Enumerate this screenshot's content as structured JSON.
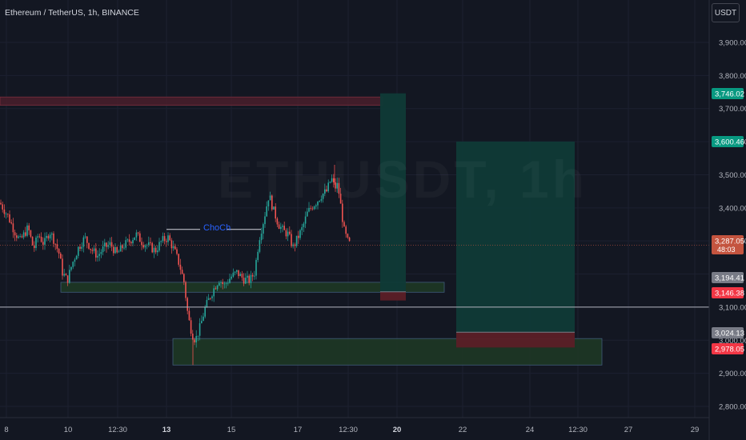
{
  "chart_title": "Ethereum / TetherUS, 1h, BINANCE",
  "unit_button": "USDT",
  "watermark": "ETHUSDT, 1h",
  "annotation": "ChoCh",
  "price_axis": {
    "ticks": [
      "3,900.00",
      "3,800.00",
      "3,700.00",
      "3,600.00",
      "3,500.00",
      "3,400.00",
      "3,300.00",
      "3,100.00",
      "3,000.00",
      "2,900.00",
      "2,800.00"
    ],
    "labels": [
      {
        "text": "3,746.02",
        "color": "#089981"
      },
      {
        "text": "3,600.46",
        "color": "#089981"
      },
      {
        "text": "3,287.05",
        "sub": "48:03",
        "color": "#c4543f"
      },
      {
        "text": "3,194.41",
        "color": "#787b86"
      },
      {
        "text": "3,146.38",
        "color": "#f23645"
      },
      {
        "text": "3,024.13",
        "color": "#787b86"
      },
      {
        "text": "2,978.05",
        "color": "#f23645"
      }
    ]
  },
  "time_axis": [
    "8",
    "10",
    "12:30",
    "13",
    "15",
    "17",
    "12:30",
    "20",
    "22",
    "24",
    "12:30",
    "27",
    "29"
  ],
  "colors": {
    "background": "#131722",
    "up": "#26a69a",
    "down": "#ef5350",
    "target": "#0f3a37",
    "stop": "#5b1f27",
    "demand_zone": "#1f3a25",
    "supply_zone": "#4a1f2c",
    "horizontal_line": "#b2b5be"
  },
  "chart_data": {
    "type": "candlestick",
    "symbol": "ETHUSDT",
    "interval": "1h",
    "exchange": "BINANCE",
    "last_price": 3287.05,
    "countdown": "48:03",
    "ylim": [
      2770,
      3960
    ],
    "horizontal_line": 3100,
    "zones": [
      {
        "type": "supply",
        "top": 3735,
        "bottom": 3710
      },
      {
        "type": "demand",
        "top": 3175,
        "bottom": 3145
      },
      {
        "type": "demand",
        "top": 3005,
        "bottom": 2925
      }
    ],
    "positions": [
      {
        "type": "long",
        "target": 3746.02,
        "entry": 3146.38,
        "stop": 3120
      },
      {
        "type": "long",
        "target": 3600.46,
        "entry": 3024.13,
        "stop": 2978.05
      }
    ],
    "choch_level": 3335,
    "path": [
      [
        0,
        3415
      ],
      [
        10,
        3375
      ],
      [
        18,
        3330
      ],
      [
        25,
        3300
      ],
      [
        35,
        3340
      ],
      [
        42,
        3275
      ],
      [
        48,
        3320
      ],
      [
        55,
        3290
      ],
      [
        62,
        3330
      ],
      [
        68,
        3300
      ],
      [
        74,
        3260
      ],
      [
        78,
        3205
      ],
      [
        84,
        3180
      ],
      [
        90,
        3230
      ],
      [
        98,
        3280
      ],
      [
        106,
        3310
      ],
      [
        114,
        3275
      ],
      [
        122,
        3255
      ],
      [
        130,
        3280
      ],
      [
        138,
        3290
      ],
      [
        146,
        3260
      ],
      [
        154,
        3285
      ],
      [
        162,
        3300
      ],
      [
        170,
        3320
      ],
      [
        178,
        3295
      ],
      [
        186,
        3285
      ],
      [
        194,
        3270
      ],
      [
        202,
        3300
      ],
      [
        210,
        3310
      ],
      [
        218,
        3270
      ],
      [
        224,
        3230
      ],
      [
        230,
        3175
      ],
      [
        235,
        3070
      ],
      [
        240,
        3020
      ],
      [
        244,
        3000
      ],
      [
        250,
        3040
      ],
      [
        256,
        3095
      ],
      [
        262,
        3130
      ],
      [
        268,
        3160
      ],
      [
        274,
        3185
      ],
      [
        280,
        3165
      ],
      [
        288,
        3190
      ],
      [
        296,
        3205
      ],
      [
        304,
        3185
      ],
      [
        312,
        3180
      ],
      [
        318,
        3205
      ],
      [
        324,
        3310
      ],
      [
        330,
        3370
      ],
      [
        336,
        3440
      ],
      [
        342,
        3390
      ],
      [
        348,
        3350
      ],
      [
        354,
        3330
      ],
      [
        360,
        3320
      ],
      [
        366,
        3280
      ],
      [
        372,
        3310
      ],
      [
        378,
        3340
      ],
      [
        384,
        3385
      ],
      [
        390,
        3405
      ],
      [
        396,
        3420
      ],
      [
        402,
        3440
      ],
      [
        408,
        3450
      ],
      [
        414,
        3490
      ],
      [
        418,
        3460
      ],
      [
        422,
        3470
      ],
      [
        426,
        3400
      ],
      [
        430,
        3330
      ],
      [
        434,
        3300
      ],
      [
        438,
        3287
      ]
    ]
  }
}
